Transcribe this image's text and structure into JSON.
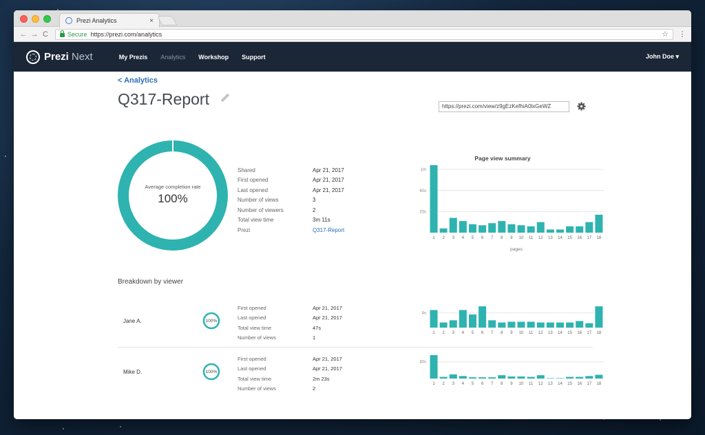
{
  "browser": {
    "tab_title": "Prezi Analytics",
    "tab_close": "×",
    "secure_label": "Secure",
    "url": "https://prezi.com/analytics",
    "back": "←",
    "forward": "→",
    "reload": "C",
    "star": "☆",
    "menu": "⋮"
  },
  "appbar": {
    "logo_brand": "Prezi",
    "logo_product": "Next",
    "nav": [
      "My Prezis",
      "Analytics",
      "Workshop",
      "Support"
    ],
    "user": "John Doe ▾"
  },
  "page": {
    "back_link": "< Analytics",
    "title": "Q317-Report",
    "share_url": "https://prezi.com/view/z9gEzKefhiA0lxGeWZ"
  },
  "completion": {
    "label": "Average completion rate",
    "value": "100%",
    "fraction": 1.0
  },
  "stats": [
    {
      "label": "Shared",
      "value": "Apr 21, 2017"
    },
    {
      "label": "First opened",
      "value": "Apr 21, 2017"
    },
    {
      "label": "Last opened",
      "value": "Apr 21, 2017"
    },
    {
      "label": "Number of views",
      "value": "3"
    },
    {
      "label": "Number of viewers",
      "value": "2"
    },
    {
      "label": "Total view time",
      "value": "3m 11s"
    },
    {
      "label": "Prezi",
      "value": "Q317-Report"
    }
  ],
  "breakdown_title": "Breakdown by viewer",
  "viewers": [
    {
      "name": "Jane A.",
      "completion": "100%",
      "stats": [
        {
          "label": "First opened",
          "value": "Apr 21, 2017"
        },
        {
          "label": "Last opened",
          "value": "Apr 21, 2017"
        },
        {
          "label": "Total view time",
          "value": "47s"
        },
        {
          "label": "Number of views",
          "value": "1"
        }
      ]
    },
    {
      "name": "Mike D.",
      "completion": "100%",
      "stats": [
        {
          "label": "First opened",
          "value": "Apr 21, 2017"
        },
        {
          "label": "Last opened",
          "value": "Apr 21, 2017"
        },
        {
          "label": "Total view time",
          "value": "2m 23s"
        },
        {
          "label": "Number of views",
          "value": "2"
        }
      ]
    }
  ],
  "chart_data": [
    {
      "type": "bar",
      "title": "Page view summary",
      "xlabel": "pages",
      "ylabel": "",
      "categories": [
        "1",
        "2",
        "3",
        "4",
        "5",
        "6",
        "7",
        "8",
        "9",
        "10",
        "11",
        "12",
        "13",
        "14",
        "15",
        "16",
        "17",
        "18"
      ],
      "values": [
        64,
        4,
        14,
        11,
        8,
        7,
        9,
        11,
        8,
        7,
        6,
        10,
        3,
        3,
        6,
        6,
        10,
        17
      ],
      "yticks": [
        "20s",
        "40s",
        "1m"
      ],
      "ytick_values": [
        20,
        40,
        60
      ],
      "ylim": [
        0,
        64
      ],
      "color": "#2fb3b0"
    },
    {
      "type": "bar",
      "title": "",
      "xlabel": "",
      "categories": [
        "1",
        "2",
        "3",
        "4",
        "5",
        "6",
        "7",
        "8",
        "9",
        "10",
        "11",
        "12",
        "13",
        "14",
        "15",
        "16",
        "17",
        "18"
      ],
      "values": [
        4.8,
        1.4,
        2.0,
        4.8,
        3.6,
        5.8,
        2.0,
        1.4,
        1.6,
        1.6,
        1.6,
        1.4,
        1.4,
        1.4,
        1.4,
        1.8,
        1.2,
        5.8
      ],
      "yticks": [
        "4s"
      ],
      "ytick_values": [
        4
      ],
      "ylim": [
        0,
        6
      ],
      "color": "#2fb3b0"
    },
    {
      "type": "bar",
      "title": "",
      "xlabel": "",
      "categories": [
        "1",
        "2",
        "3",
        "4",
        "5",
        "6",
        "7",
        "8",
        "9",
        "10",
        "11",
        "12",
        "13",
        "14",
        "15",
        "16",
        "17",
        "18"
      ],
      "values": [
        56,
        4,
        10,
        6,
        3,
        3,
        3,
        8,
        5,
        5,
        4,
        8,
        1,
        1,
        4,
        4,
        6,
        9
      ],
      "yticks": [
        "40s"
      ],
      "ytick_values": [
        40
      ],
      "ylim": [
        0,
        56
      ],
      "color": "#2fb3b0"
    }
  ]
}
